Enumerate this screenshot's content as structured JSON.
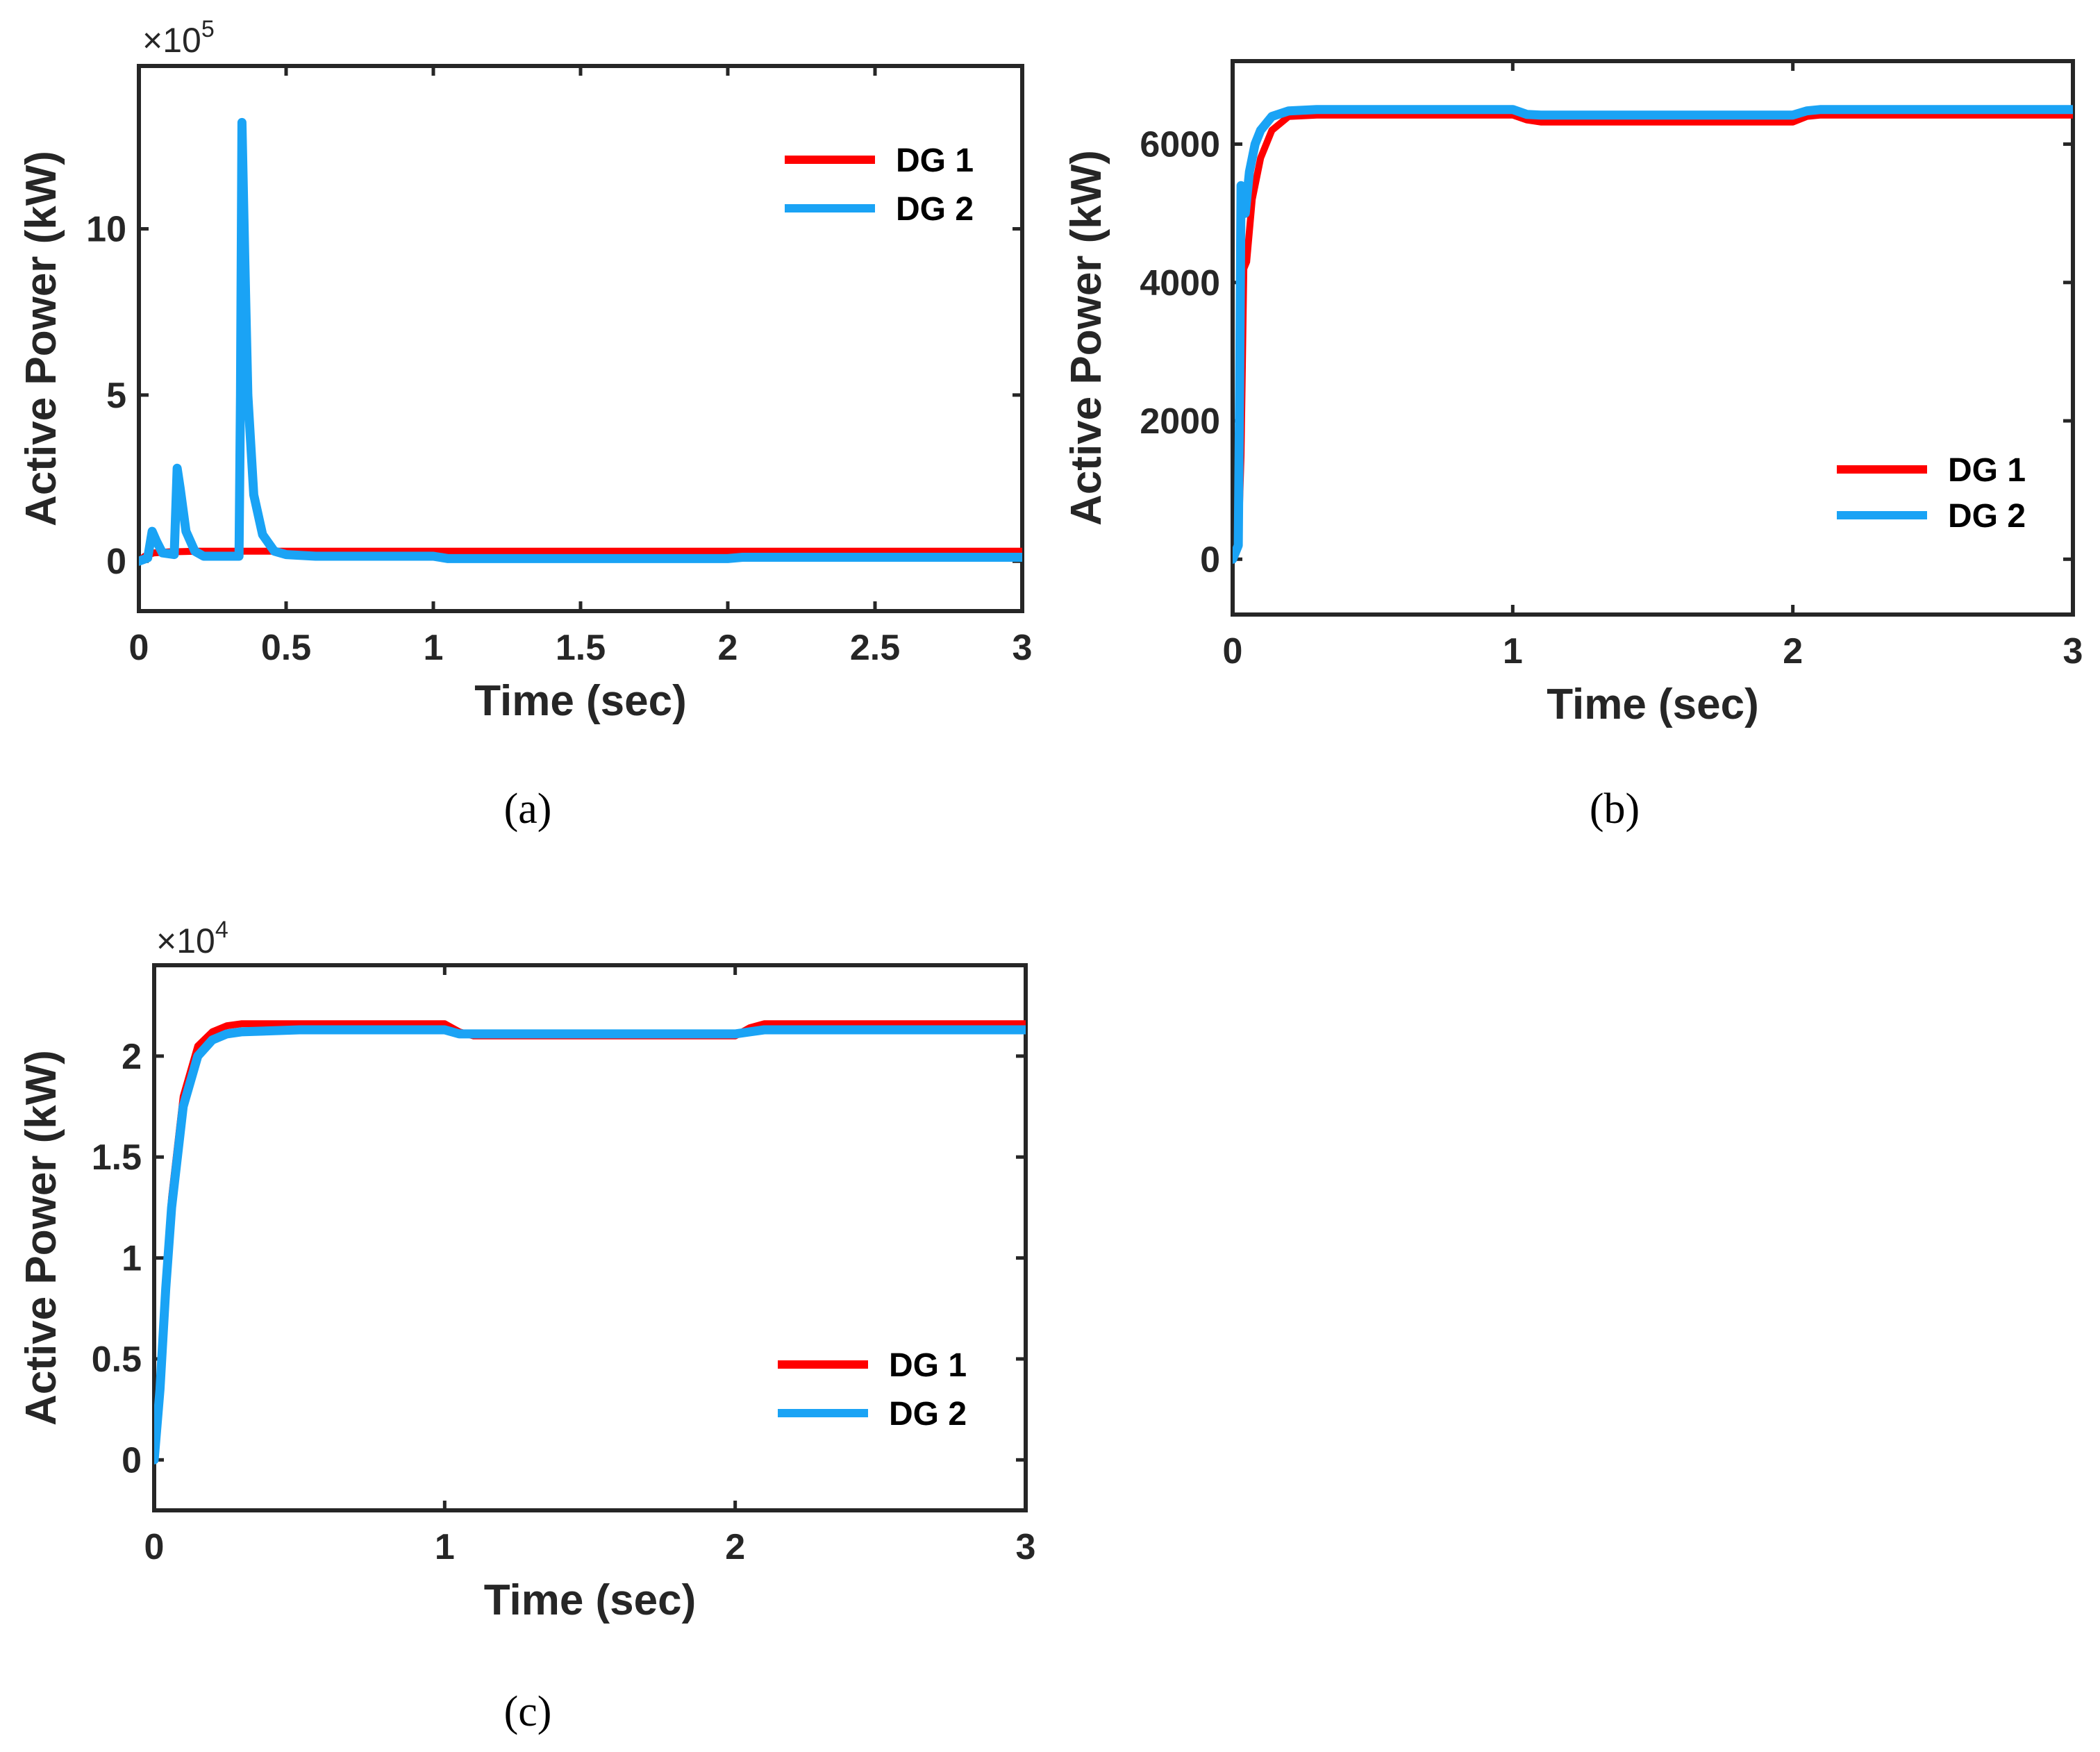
{
  "chart_data": [
    {
      "type": "line",
      "caption": "(a)",
      "xlabel": "Time (sec)",
      "ylabel": "Active Power (kW)",
      "y_multiplier_base": "×10",
      "y_multiplier_exponent": "5",
      "xlim": [
        0,
        3
      ],
      "ylim": [
        -1.5,
        14.9
      ],
      "xticks": [
        0,
        0.5,
        1,
        1.5,
        2,
        2.5,
        3
      ],
      "xtick_labels": [
        "0",
        "0.5",
        "1",
        "1.5",
        "2",
        "2.5",
        "3"
      ],
      "yticks": [
        0,
        5,
        10
      ],
      "ytick_labels": [
        "0",
        "5",
        "10"
      ],
      "legend": [
        "DG 1",
        "DG 2"
      ],
      "legend_position": "top-right",
      "series": [
        {
          "name": "DG 1",
          "color": "#ff0000",
          "x": [
            0,
            0.02,
            0.05,
            0.1,
            0.2,
            0.3,
            0.5,
            1.0,
            1.5,
            2.0,
            2.5,
            3.0
          ],
          "y": [
            0,
            0.15,
            0.25,
            0.28,
            0.3,
            0.3,
            0.3,
            0.3,
            0.3,
            0.3,
            0.3,
            0.3
          ]
        },
        {
          "name": "DG 2",
          "color": "#1aa3f5",
          "x": [
            0,
            0.03,
            0.045,
            0.06,
            0.08,
            0.12,
            0.13,
            0.14,
            0.16,
            0.19,
            0.22,
            0.34,
            0.345,
            0.35,
            0.36,
            0.37,
            0.39,
            0.42,
            0.46,
            0.5,
            0.6,
            1.0,
            1.05,
            2.0,
            2.05,
            3.0
          ],
          "y": [
            0,
            0.1,
            0.9,
            0.6,
            0.25,
            0.2,
            2.8,
            2.2,
            0.9,
            0.3,
            0.15,
            0.15,
            5.0,
            13.2,
            9.0,
            5.0,
            2.0,
            0.8,
            0.3,
            0.2,
            0.15,
            0.15,
            0.08,
            0.08,
            0.12,
            0.12
          ]
        }
      ]
    },
    {
      "type": "line",
      "caption": "(b)",
      "xlabel": "Time (sec)",
      "ylabel": "Active Power (kW)",
      "xlim": [
        0,
        3
      ],
      "ylim": [
        -800,
        7200
      ],
      "xticks": [
        0,
        1,
        2,
        3
      ],
      "xtick_labels": [
        "0",
        "1",
        "2",
        "3"
      ],
      "yticks": [
        0,
        2000,
        4000,
        6000
      ],
      "ytick_labels": [
        "0",
        "2000",
        "4000",
        "6000"
      ],
      "legend": [
        "DG 1",
        "DG 2"
      ],
      "legend_position": "right",
      "series": [
        {
          "name": "DG 1",
          "color": "#ff0000",
          "x": [
            0,
            0.02,
            0.03,
            0.04,
            0.05,
            0.07,
            0.1,
            0.14,
            0.2,
            0.3,
            1.0,
            1.05,
            1.1,
            2.0,
            2.05,
            2.1,
            3.0
          ],
          "y": [
            0,
            200,
            1500,
            4200,
            4300,
            5200,
            5800,
            6200,
            6400,
            6420,
            6420,
            6350,
            6320,
            6320,
            6400,
            6420,
            6420
          ]
        },
        {
          "name": "DG 2",
          "color": "#1aa3f5",
          "x": [
            0,
            0.02,
            0.025,
            0.03,
            0.035,
            0.045,
            0.06,
            0.08,
            0.1,
            0.14,
            0.2,
            0.3,
            1.0,
            1.05,
            1.1,
            2.0,
            2.05,
            2.1,
            3.0
          ],
          "y": [
            0,
            200,
            2500,
            5400,
            5300,
            5000,
            5600,
            6000,
            6200,
            6400,
            6480,
            6500,
            6500,
            6430,
            6420,
            6420,
            6480,
            6500,
            6500
          ]
        }
      ]
    },
    {
      "type": "line",
      "caption": "(c)",
      "xlabel": "Time (sec)",
      "ylabel": "Active Power (kW)",
      "y_multiplier_base": "×10",
      "y_multiplier_exponent": "4",
      "xlim": [
        0,
        3
      ],
      "ylim": [
        -0.25,
        2.45
      ],
      "xticks": [
        0,
        1,
        2,
        3
      ],
      "xtick_labels": [
        "0",
        "1",
        "2",
        "3"
      ],
      "yticks": [
        0,
        0.5,
        1,
        1.5,
        2
      ],
      "ytick_labels": [
        "0",
        "0.5",
        "1",
        "1.5",
        "2"
      ],
      "legend": [
        "DG 1",
        "DG 2"
      ],
      "legend_position": "bottom-right",
      "series": [
        {
          "name": "DG 1",
          "color": "#ff0000",
          "x": [
            0,
            0.02,
            0.04,
            0.06,
            0.1,
            0.15,
            0.2,
            0.25,
            0.3,
            0.5,
            1.0,
            1.05,
            1.1,
            2.0,
            2.05,
            2.1,
            3.0
          ],
          "y": [
            0,
            0.4,
            0.9,
            1.3,
            1.8,
            2.05,
            2.12,
            2.15,
            2.16,
            2.16,
            2.16,
            2.12,
            2.1,
            2.1,
            2.14,
            2.16,
            2.16
          ]
        },
        {
          "name": "DG 2",
          "color": "#1aa3f5",
          "x": [
            0,
            0.02,
            0.04,
            0.06,
            0.1,
            0.15,
            0.2,
            0.25,
            0.3,
            0.5,
            1.0,
            1.05,
            1.1,
            2.0,
            2.05,
            2.1,
            3.0
          ],
          "y": [
            0,
            0.35,
            0.85,
            1.25,
            1.75,
            2.0,
            2.08,
            2.11,
            2.12,
            2.13,
            2.13,
            2.11,
            2.11,
            2.11,
            2.12,
            2.13,
            2.13
          ]
        }
      ]
    }
  ]
}
